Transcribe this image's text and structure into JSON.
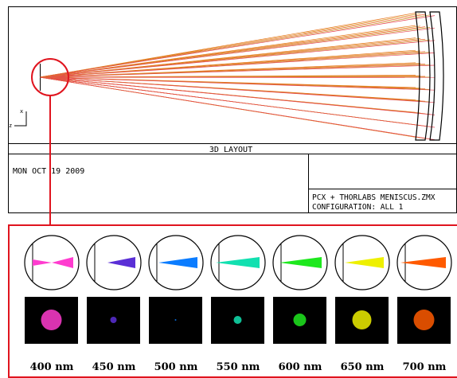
{
  "layout": {
    "title": "3D LAYOUT",
    "date": "MON OCT 19 2009",
    "file": "PCX + THORLABS MENISCUS.ZMX",
    "configuration": "CONFIGURATION: ALL 1",
    "axis_x": "x",
    "axis_z": "z"
  },
  "panels": [
    {
      "label": "400 nm",
      "color": "#ff3ccf"
    },
    {
      "label": "450 nm",
      "color": "#5a2fd6"
    },
    {
      "label": "500 nm",
      "color": "#0a7cff"
    },
    {
      "label": "550 nm",
      "color": "#12e0b0"
    },
    {
      "label": "600 nm",
      "color": "#1ee81e"
    },
    {
      "label": "650 nm",
      "color": "#eef000"
    },
    {
      "label": "700 nm",
      "color": "#ff5a00"
    }
  ]
}
